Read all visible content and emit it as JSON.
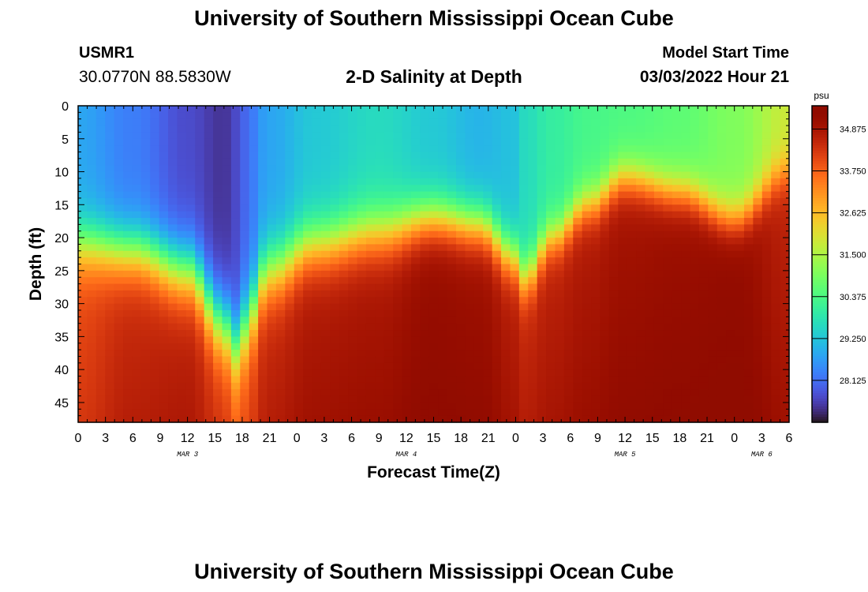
{
  "header": {
    "title": "University of Southern Mississippi Ocean Cube",
    "station_id": "USMR1",
    "coords": "30.0770N  88.5830W",
    "plot_title": "2-D Salinity at Depth",
    "model_start_label": "Model Start Time",
    "model_start_value": "03/03/2022 Hour 21"
  },
  "footer": {
    "title": "University of Southern Mississippi Ocean Cube"
  },
  "chart_data": {
    "type": "heatmap",
    "title": "2-D Salinity at Depth",
    "xlabel": "Forecast Time(Z)",
    "ylabel": "Depth (ft)",
    "colorbar_unit": "psu",
    "colorbar_ticks": [
      34.875,
      33.75,
      32.625,
      31.5,
      30.375,
      29.25,
      28.125
    ],
    "colorbar_range": [
      27.0,
      35.5
    ],
    "xlim_hours": [
      0,
      78
    ],
    "x_ticks": {
      "hours": [
        0,
        3,
        6,
        9,
        12,
        15,
        18,
        21,
        24,
        27,
        30,
        33,
        36,
        39,
        42,
        45,
        48,
        51,
        54,
        57,
        60,
        63,
        66,
        69,
        72,
        75,
        78
      ],
      "labels": [
        "0",
        "3",
        "6",
        "9",
        "12",
        "15",
        "18",
        "21",
        "0",
        "3",
        "6",
        "9",
        "12",
        "15",
        "18",
        "21",
        "0",
        "3",
        "6",
        "9",
        "12",
        "15",
        "18",
        "21",
        "0",
        "3",
        "6"
      ]
    },
    "date_labels": [
      {
        "hour": 12,
        "label": "MAR 3"
      },
      {
        "hour": 36,
        "label": "MAR 4"
      },
      {
        "hour": 60,
        "label": "MAR 5"
      },
      {
        "hour": 75,
        "label": "MAR 6"
      }
    ],
    "ylim": [
      0,
      48
    ],
    "y_ticks": [
      0,
      5,
      10,
      15,
      20,
      25,
      30,
      35,
      40,
      45
    ],
    "halocline_profile": {
      "hours": [
        0,
        6,
        12,
        16,
        17,
        18,
        21,
        26,
        33,
        39,
        44,
        48,
        49,
        52,
        56,
        60,
        66,
        72,
        78
      ],
      "depth_ft": [
        21,
        22,
        25,
        33,
        37,
        34,
        25,
        21,
        19,
        17,
        18,
        23,
        26,
        20,
        15,
        11,
        13,
        17,
        10
      ],
      "thickness": [
        8,
        8,
        9,
        10,
        10,
        10,
        9,
        8,
        8,
        7,
        7,
        7,
        7,
        6,
        6,
        6,
        6,
        6,
        6
      ],
      "surface_psu": [
        28.8,
        28.3,
        27.7,
        27.4,
        27.6,
        28.0,
        28.8,
        29.3,
        29.6,
        29.3,
        29.0,
        29.2,
        29.6,
        30.0,
        30.3,
        30.4,
        30.6,
        31.0,
        31.8
      ],
      "bottom_psu": [
        34.0,
        34.4,
        34.5,
        34.0,
        33.5,
        33.7,
        34.4,
        34.7,
        34.8,
        35.1,
        35.0,
        34.6,
        34.4,
        34.6,
        34.8,
        35.0,
        35.1,
        35.2,
        34.7
      ]
    }
  }
}
